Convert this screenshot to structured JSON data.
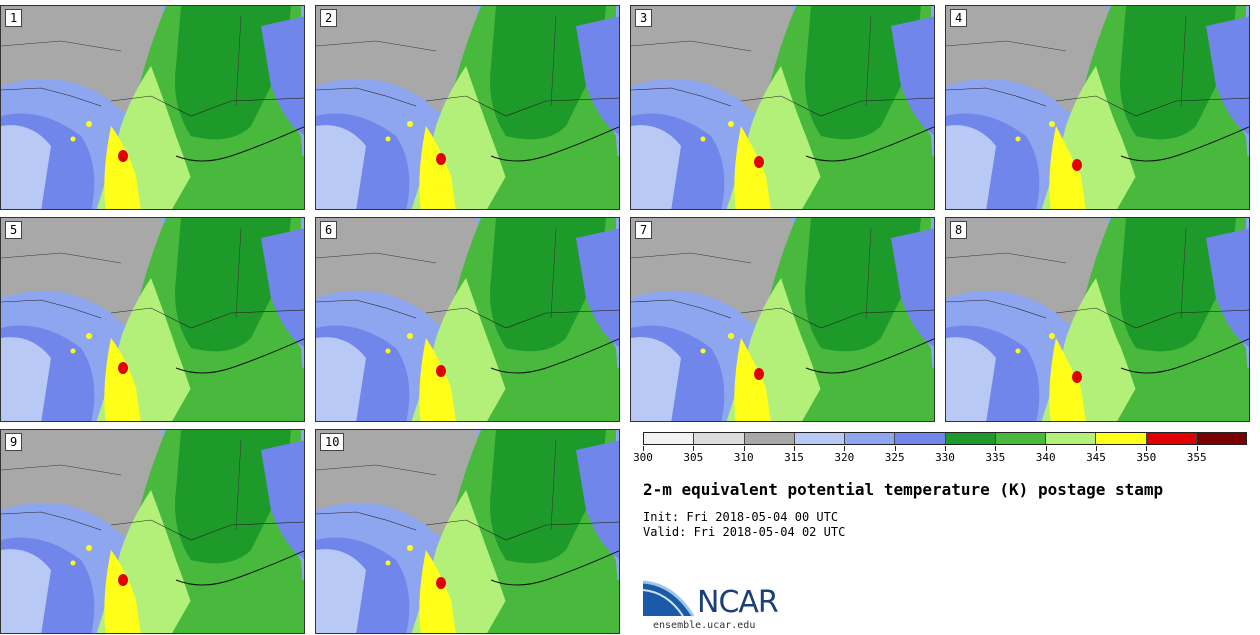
{
  "panels": [
    {
      "label": "1"
    },
    {
      "label": "2"
    },
    {
      "label": "3"
    },
    {
      "label": "4"
    },
    {
      "label": "5"
    },
    {
      "label": "6"
    },
    {
      "label": "7"
    },
    {
      "label": "8"
    },
    {
      "label": "9"
    },
    {
      "label": "10"
    }
  ],
  "colorbar": {
    "levels": [
      300,
      305,
      310,
      315,
      320,
      325,
      330,
      335,
      340,
      345,
      350,
      355,
      360
    ],
    "tick_labels": [
      "300",
      "305",
      "310",
      "315",
      "320",
      "325",
      "330",
      "335",
      "340",
      "345",
      "350",
      "355"
    ],
    "colors": [
      "#f2f2f2",
      "#dcdcdc",
      "#a8a8a8",
      "#b9c9f5",
      "#8ea6f0",
      "#7086ea",
      "#1d9a2a",
      "#48b93d",
      "#b3f07a",
      "#ffff1a",
      "#e00000",
      "#7a0000"
    ]
  },
  "title": "2-m equivalent potential temperature (K) postage stamp",
  "init_line": "Init: Fri 2018-05-04 00 UTC",
  "valid_line": "Valid: Fri 2018-05-04 02 UTC",
  "logo": {
    "text": "NCAR",
    "url_text": "ensemble.ucar.edu"
  }
}
